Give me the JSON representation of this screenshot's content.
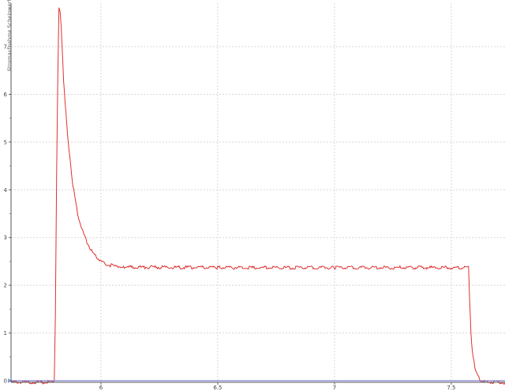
{
  "chart_data": {
    "type": "line",
    "title": "",
    "xlabel": "",
    "ylabel": "Stromaufnahme Scheinwerfer [A]",
    "xlim": [
      5.615,
      7.73
    ],
    "ylim": [
      -0.05,
      7.9
    ],
    "x_ticks": [
      "6",
      "6.5",
      "7",
      "7.5"
    ],
    "x_tick_values": [
      6,
      6.5,
      7,
      7.5
    ],
    "y_ticks": [
      "0",
      "1",
      "2",
      "3",
      "4",
      "5",
      "6",
      "7"
    ],
    "y_tick_values": [
      0,
      1,
      2,
      3,
      4,
      5,
      6,
      7
    ],
    "grid": true,
    "legend": "none",
    "series": [
      {
        "color": "#e03030",
        "x": [
          5.615,
          5.7,
          5.8,
          5.805,
          5.81,
          5.815,
          5.82,
          5.825,
          5.83,
          5.84,
          5.85,
          5.86,
          5.87,
          5.88,
          5.9,
          5.92,
          5.94,
          5.96,
          5.98,
          6.0,
          6.03,
          6.06,
          6.1,
          6.5,
          7.0,
          7.574,
          7.578,
          7.584,
          7.59,
          7.601,
          7.612,
          7.622,
          7.64,
          7.73
        ],
        "y": [
          -0.03,
          -0.03,
          -0.03,
          1.4,
          4.2,
          6.3,
          7.8,
          7.75,
          7.4,
          6.3,
          5.6,
          5.0,
          4.5,
          4.1,
          3.5,
          3.15,
          2.9,
          2.72,
          2.6,
          2.5,
          2.43,
          2.4,
          2.38,
          2.37,
          2.37,
          2.37,
          1.8,
          1.0,
          0.6,
          0.3,
          0.12,
          0.03,
          -0.02,
          -0.04
        ]
      },
      {
        "color": "#8080d0",
        "x": [
          5.615,
          7.73
        ],
        "y": [
          0,
          0
        ]
      }
    ]
  }
}
